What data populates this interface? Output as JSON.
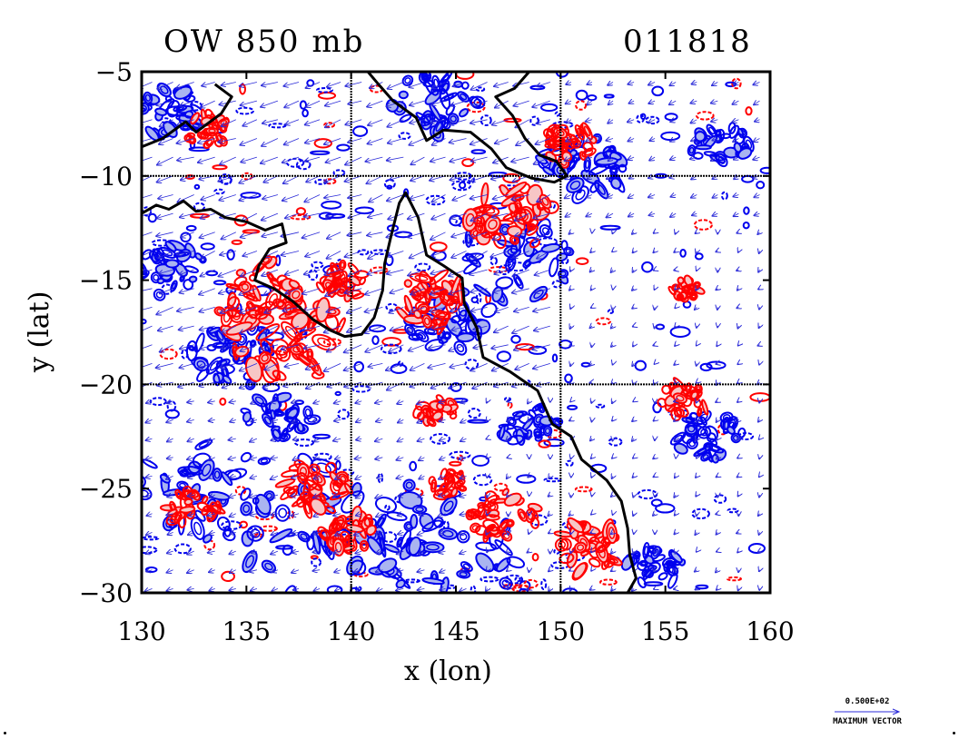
{
  "header": {
    "title_left": "OW 850 mb",
    "title_right": "011818"
  },
  "legend": {
    "vector_value": "0.500E+02",
    "vector_label": "MAXIMUM VECTOR"
  },
  "chart_data": {
    "type": "heatmap",
    "title": "OW 850 mb",
    "subtitle": "011818",
    "xlabel": "x (lon)",
    "ylabel": "y (lat)",
    "xlim": [
      130,
      160
    ],
    "ylim": [
      -30,
      -5
    ],
    "xticks": [
      130,
      135,
      140,
      145,
      150,
      155,
      160
    ],
    "yticks": [
      -5,
      -10,
      -15,
      -20,
      -25,
      -30
    ],
    "grid": true,
    "grid_lines_x": [
      140,
      150
    ],
    "grid_lines_y": [
      -10,
      -20
    ],
    "colors": {
      "positive_contour": "#ff0000",
      "positive_fill": "#f7c6c6",
      "negative_contour": "#0000ee",
      "negative_fill": "#aab4f0",
      "vectors": "#2b2bd8",
      "coastline": "#000000"
    },
    "coastline_points": [
      [
        130.0,
        -11.8
      ],
      [
        130.7,
        -11.4
      ],
      [
        131.3,
        -11.6
      ],
      [
        132.0,
        -11.2
      ],
      [
        132.6,
        -11.7
      ],
      [
        133.3,
        -11.6
      ],
      [
        134.0,
        -12.0
      ],
      [
        135.0,
        -12.2
      ],
      [
        135.9,
        -12.6
      ],
      [
        136.7,
        -12.3
      ],
      [
        136.9,
        -13.2
      ],
      [
        136.1,
        -13.5
      ],
      [
        135.6,
        -14.3
      ],
      [
        135.4,
        -15.0
      ],
      [
        136.3,
        -15.4
      ],
      [
        137.2,
        -16.0
      ],
      [
        138.2,
        -16.9
      ],
      [
        139.0,
        -17.4
      ],
      [
        139.7,
        -17.7
      ],
      [
        140.5,
        -17.6
      ],
      [
        141.1,
        -16.8
      ],
      [
        141.5,
        -15.5
      ],
      [
        141.6,
        -14.2
      ],
      [
        141.9,
        -12.9
      ],
      [
        142.3,
        -11.3
      ],
      [
        142.6,
        -10.8
      ],
      [
        143.2,
        -12.0
      ],
      [
        143.6,
        -13.8
      ],
      [
        144.4,
        -14.3
      ],
      [
        145.3,
        -14.9
      ],
      [
        145.4,
        -16.1
      ],
      [
        146.0,
        -17.3
      ],
      [
        146.3,
        -18.7
      ],
      [
        147.6,
        -19.4
      ],
      [
        148.9,
        -20.3
      ],
      [
        149.6,
        -21.9
      ],
      [
        150.5,
        -22.5
      ],
      [
        151.0,
        -23.6
      ],
      [
        152.2,
        -24.6
      ],
      [
        152.9,
        -25.6
      ],
      [
        153.2,
        -26.9
      ],
      [
        153.3,
        -28.2
      ],
      [
        153.6,
        -29.3
      ],
      [
        153.2,
        -30.0
      ]
    ],
    "png_coast_points": [
      [
        140.8,
        -5.0
      ],
      [
        141.3,
        -5.6
      ],
      [
        142.0,
        -6.4
      ],
      [
        143.1,
        -7.2
      ],
      [
        143.6,
        -8.3
      ],
      [
        144.4,
        -7.8
      ],
      [
        145.7,
        -7.9
      ],
      [
        146.7,
        -8.7
      ],
      [
        147.4,
        -9.6
      ],
      [
        148.6,
        -10.1
      ],
      [
        149.7,
        -10.3
      ],
      [
        150.3,
        -10.0
      ],
      [
        149.8,
        -9.3
      ],
      [
        149.0,
        -9.0
      ],
      [
        148.3,
        -8.2
      ],
      [
        147.7,
        -7.1
      ],
      [
        146.9,
        -6.2
      ],
      [
        147.8,
        -5.8
      ],
      [
        148.5,
        -5.0
      ]
    ],
    "irian_coast_points": [
      [
        130.0,
        -8.6
      ],
      [
        131.0,
        -8.2
      ],
      [
        132.1,
        -7.4
      ],
      [
        132.6,
        -7.9
      ],
      [
        133.8,
        -7.0
      ],
      [
        134.3,
        -6.2
      ],
      [
        133.5,
        -5.6
      ]
    ],
    "vector_legend": {
      "value": 50,
      "label": "MAXIMUM VECTOR"
    },
    "positive_features": [
      {
        "lon": 137.0,
        "lat": -17.8,
        "size": 2.0,
        "weight": 1.0
      },
      {
        "lon": 135.5,
        "lat": -15.6,
        "size": 1.6,
        "weight": 0.8
      },
      {
        "lon": 143.8,
        "lat": -16.0,
        "size": 1.2,
        "weight": 0.8
      },
      {
        "lon": 147.6,
        "lat": -12.0,
        "size": 1.5,
        "weight": 0.9
      },
      {
        "lon": 139.7,
        "lat": -15.0,
        "size": 0.9,
        "weight": 0.5
      },
      {
        "lon": 138.4,
        "lat": -24.9,
        "size": 1.2,
        "weight": 0.7
      },
      {
        "lon": 144.0,
        "lat": -21.3,
        "size": 0.7,
        "weight": 0.4
      },
      {
        "lon": 147.3,
        "lat": -26.2,
        "size": 1.2,
        "weight": 0.6
      },
      {
        "lon": 151.2,
        "lat": -27.8,
        "size": 1.2,
        "weight": 0.7
      },
      {
        "lon": 150.5,
        "lat": -8.5,
        "size": 0.9,
        "weight": 0.6
      },
      {
        "lon": 155.7,
        "lat": -20.8,
        "size": 0.9,
        "weight": 0.5
      },
      {
        "lon": 156.0,
        "lat": -15.4,
        "size": 0.5,
        "weight": 0.3
      },
      {
        "lon": 133.2,
        "lat": -7.8,
        "size": 0.8,
        "weight": 0.4
      },
      {
        "lon": 140.0,
        "lat": -27.2,
        "size": 1.0,
        "weight": 0.6
      },
      {
        "lon": 132.5,
        "lat": -26.0,
        "size": 0.9,
        "weight": 0.5
      },
      {
        "lon": 144.6,
        "lat": -24.7,
        "size": 0.6,
        "weight": 0.3
      }
    ],
    "negative_features": [
      {
        "lon": 139.0,
        "lat": -27.0,
        "size": 3.5,
        "weight": 1.0
      },
      {
        "lon": 133.0,
        "lat": -25.0,
        "size": 2.5,
        "weight": 0.8
      },
      {
        "lon": 144.5,
        "lat": -28.2,
        "size": 2.5,
        "weight": 0.8
      },
      {
        "lon": 144.5,
        "lat": -17.0,
        "size": 1.6,
        "weight": 0.8
      },
      {
        "lon": 134.5,
        "lat": -18.5,
        "size": 1.6,
        "weight": 0.7
      },
      {
        "lon": 147.8,
        "lat": -14.0,
        "size": 2.0,
        "weight": 0.7
      },
      {
        "lon": 151.0,
        "lat": -9.5,
        "size": 1.5,
        "weight": 0.8
      },
      {
        "lon": 144.0,
        "lat": -6.5,
        "size": 1.5,
        "weight": 0.7
      },
      {
        "lon": 157.6,
        "lat": -8.5,
        "size": 1.0,
        "weight": 0.5
      },
      {
        "lon": 157.0,
        "lat": -22.5,
        "size": 1.2,
        "weight": 0.6
      },
      {
        "lon": 154.5,
        "lat": -28.7,
        "size": 1.0,
        "weight": 0.5
      },
      {
        "lon": 131.5,
        "lat": -14.5,
        "size": 1.3,
        "weight": 0.6
      },
      {
        "lon": 131.0,
        "lat": -7.0,
        "size": 1.3,
        "weight": 0.6
      },
      {
        "lon": 136.5,
        "lat": -21.5,
        "size": 1.2,
        "weight": 0.5
      },
      {
        "lon": 148.5,
        "lat": -22.0,
        "size": 1.0,
        "weight": 0.5
      }
    ]
  }
}
